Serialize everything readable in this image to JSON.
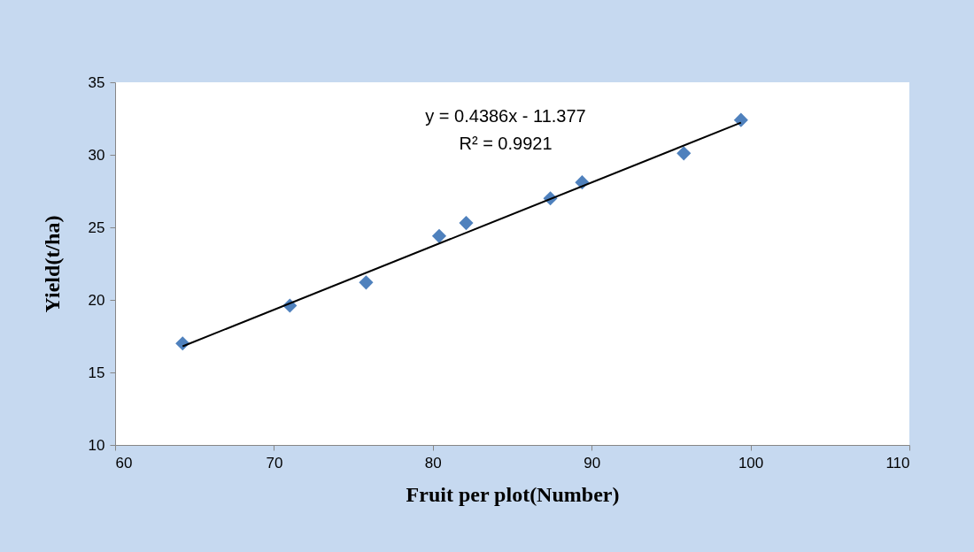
{
  "chart_data": {
    "type": "scatter",
    "xlabel": "Fruit per plot(Number)",
    "ylabel": "Yield(t/ha)",
    "x": [
      64.25,
      71.0,
      75.8,
      80.4,
      82.1,
      87.4,
      89.4,
      95.8,
      99.4
    ],
    "series": [
      {
        "color": "#4f81bd",
        "marker": "diamond",
        "values": [
          17.0,
          19.6,
          21.2,
          24.4,
          25.3,
          27.0,
          28.1,
          30.1,
          32.4
        ]
      },
      {
        "type": "line",
        "color": "#000000",
        "line_style": "solid",
        "x": [
          64.25,
          99.4
        ],
        "values": [
          16.8,
          32.22
        ]
      }
    ],
    "annotations": [
      "y = 0.4386x - 11.377",
      "R² = 0.9921"
    ],
    "xlim": [
      60,
      110
    ],
    "xticks": [
      60,
      70,
      80,
      90,
      100,
      110
    ],
    "ylim": [
      10,
      35
    ],
    "yticks": [
      10,
      15,
      20,
      25,
      30,
      35
    ],
    "grid": false
  }
}
